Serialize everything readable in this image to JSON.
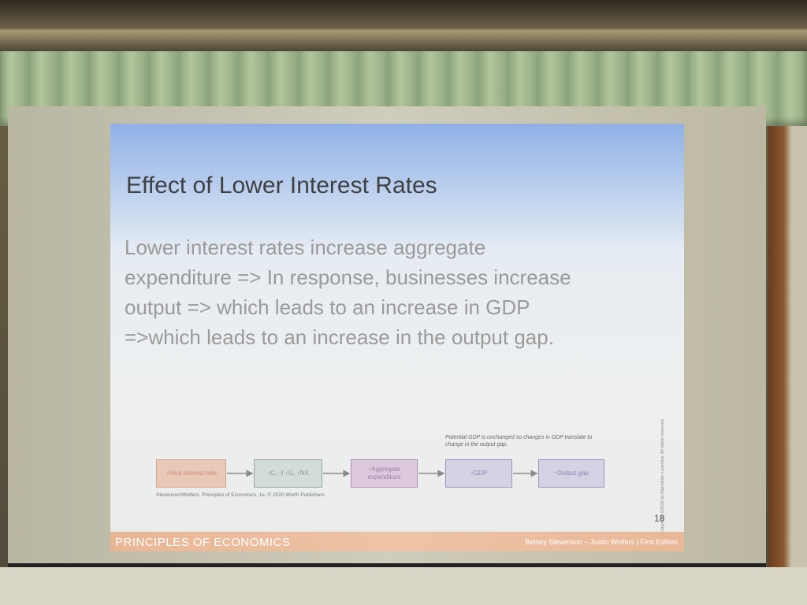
{
  "slide": {
    "title": "Effect of Lower Interest Rates",
    "body": [
      "Lower interest rates increase aggregate",
      "expenditure => In response, businesses increase",
      "output => which leads to an increase in GDP",
      "=>which leads to an increase in the output gap."
    ],
    "nodes": [
      {
        "label": "↓Real interest rate"
      },
      {
        "label": "↑C, ↑I ↑G, ↑NX"
      },
      {
        "label": "↑Aggregate expenditure"
      },
      {
        "label": "↑GDP"
      },
      {
        "label": "↑Output gap"
      }
    ],
    "note": "Potential GDP is unchanged so changes in GDP translate to change in the output gap.",
    "source": "Stevenson/Wolfers, Principles of Economics, 1e, © 2020 Worth Publishers",
    "copyright": "Copyright ©2020 by Macmillan Learning. All rights reserved",
    "page": "18",
    "footer_left": "PRINCIPLES OF ECONOMICS",
    "footer_right": "Betsey Stevenson – Justin Wolfers | First Edition"
  }
}
